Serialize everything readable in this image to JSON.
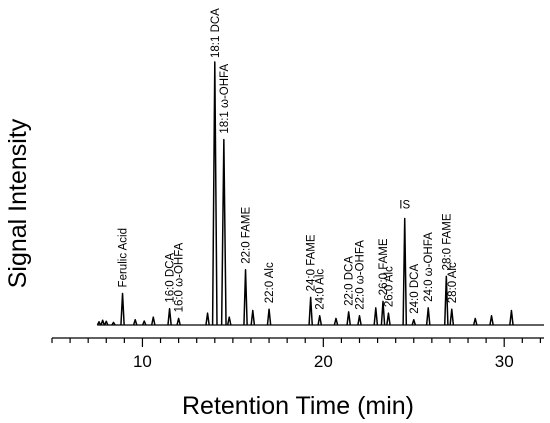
{
  "chart_data": {
    "type": "line",
    "title": "",
    "xlabel": "Retention Time (min)",
    "ylabel": "Signal Intensity",
    "xlim": [
      5,
      32.2
    ],
    "ylim": [
      0,
      100
    ],
    "x_ticks": [
      10,
      20,
      30
    ],
    "x_tick_labels": [
      "10",
      "20",
      "30"
    ],
    "x_minor_tick_step": 1,
    "y_ticks_shown": false,
    "grid": false,
    "legend": "none",
    "baseline": 0,
    "peaks": [
      {
        "rt": 7.6,
        "h": 1.2
      },
      {
        "rt": 7.8,
        "h": 1.8
      },
      {
        "rt": 8.0,
        "h": 1.4
      },
      {
        "rt": 8.4,
        "h": 1.0
      },
      {
        "rt": 8.9,
        "h": 12.0,
        "label": "Ferulic Acid"
      },
      {
        "rt": 9.6,
        "h": 2.0
      },
      {
        "rt": 10.1,
        "h": 1.5
      },
      {
        "rt": 10.6,
        "h": 3.0
      },
      {
        "rt": 11.5,
        "h": 6.2,
        "label": "16:0 DCA"
      },
      {
        "rt": 12.0,
        "h": 2.5,
        "label": "16:0 ω-OHFA"
      },
      {
        "rt": 13.6,
        "h": 4.5
      },
      {
        "rt": 14.0,
        "h": 100.0,
        "label": "18:1 DCA"
      },
      {
        "rt": 14.5,
        "h": 70.5,
        "label": "18:1 ω-OHFA"
      },
      {
        "rt": 14.8,
        "h": 3.0
      },
      {
        "rt": 15.7,
        "h": 21.0,
        "label": "22:0 FAME"
      },
      {
        "rt": 16.1,
        "h": 5.5
      },
      {
        "rt": 17.0,
        "h": 6.0,
        "label": "22:0 Alc"
      },
      {
        "rt": 19.3,
        "h": 10.5,
        "label": "24:0 FAME"
      },
      {
        "rt": 19.8,
        "h": 3.5,
        "label": "24:0 Alc"
      },
      {
        "rt": 20.7,
        "h": 2.5
      },
      {
        "rt": 21.4,
        "h": 5.0,
        "label": "22:0 DCA"
      },
      {
        "rt": 22.0,
        "h": 3.5,
        "label": "22:0 ω-OHFA"
      },
      {
        "rt": 22.9,
        "h": 6.5
      },
      {
        "rt": 23.3,
        "h": 9.0,
        "label": "26:0 FAME"
      },
      {
        "rt": 23.6,
        "h": 4.5,
        "label": "26:0 Alc"
      },
      {
        "rt": 24.5,
        "h": 40.5,
        "label": "IS"
      },
      {
        "rt": 25.0,
        "h": 2.0,
        "label": "24:0 DCA"
      },
      {
        "rt": 25.8,
        "h": 6.5,
        "label": "24:0 ω-OHFA"
      },
      {
        "rt": 26.8,
        "h": 18.5,
        "label": "28:0 FAME"
      },
      {
        "rt": 27.1,
        "h": 6.0,
        "label": "28:0 Alc"
      },
      {
        "rt": 28.4,
        "h": 2.5
      },
      {
        "rt": 29.3,
        "h": 3.5
      },
      {
        "rt": 30.4,
        "h": 5.5
      }
    ]
  }
}
